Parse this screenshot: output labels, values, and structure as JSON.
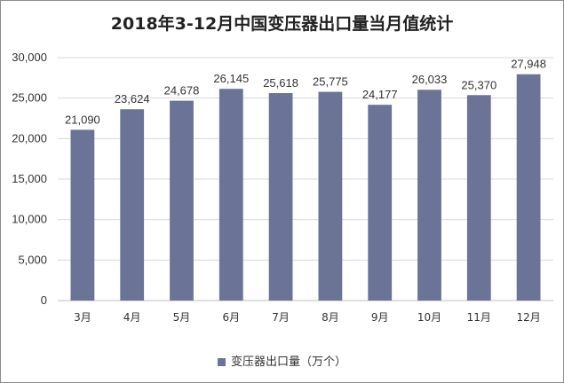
{
  "chart_data": {
    "type": "bar",
    "title": "2018年3-12月中国变压器出口量当月值统计",
    "categories": [
      "3月",
      "4月",
      "5月",
      "6月",
      "7月",
      "8月",
      "9月",
      "10月",
      "11月",
      "12月"
    ],
    "series": [
      {
        "name": "变压器出口量（万个）",
        "values": [
          21090,
          23624,
          24678,
          26145,
          25618,
          25775,
          24177,
          26033,
          25370,
          27948
        ],
        "labels": [
          "21,090",
          "23,624",
          "24,678",
          "26,145",
          "25,618",
          "25,775",
          "24,177",
          "26,033",
          "25,370",
          "27,948"
        ]
      }
    ],
    "ylim": [
      0,
      30000
    ],
    "yticks": [
      0,
      5000,
      10000,
      15000,
      20000,
      25000,
      30000
    ],
    "ytick_labels": [
      "0",
      "5,000",
      "10,000",
      "15,000",
      "20,000",
      "25,000",
      "30,000"
    ],
    "grid": true,
    "legend_position": "bottom",
    "bar_color": "#6b7397"
  }
}
